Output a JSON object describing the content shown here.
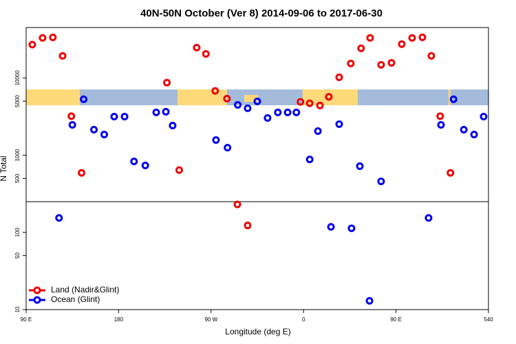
{
  "chart_data": {
    "type": "scatter",
    "title": "40N-50N October (Ver 8)   2014-09-06 to 2017-06-30",
    "x_label": "Longitude (deg E)",
    "y_label": "N Total",
    "log_y": true,
    "legend_position": "bottom-left",
    "xlim": [
      90,
      540
    ],
    "ylim": [
      10,
      45000
    ],
    "xticks": [
      {
        "value": 90,
        "label": "90 E"
      },
      180,
      {
        "value": 270,
        "label": "90 W"
      },
      {
        "value": 360,
        "label": "0"
      },
      {
        "value": 450,
        "label": "90 E"
      },
      540
    ],
    "yticks": [
      10,
      50,
      100,
      500,
      1000,
      5000,
      10000
    ],
    "hline": 250,
    "series": [
      {
        "name": "Land (Nadir&Glint)",
        "color": "#ee0000",
        "x": [
          96,
          106,
          116,
          125.5,
          134,
          144,
          227,
          239,
          256,
          265,
          274,
          285.5,
          295.6,
          305.6,
          357,
          366,
          376,
          384.6,
          394.7,
          406,
          416,
          424.8,
          435.5,
          445.6,
          455.6,
          465.7,
          475.7,
          484.4,
          493,
          503
        ],
        "values": [
          27000,
          33000,
          33500,
          19300,
          3200,
          590,
          8700,
          640,
          24700,
          20500,
          6800,
          5400,
          230,
          123,
          4900,
          4700,
          4400,
          5700,
          10200,
          15400,
          24200,
          33000,
          14800,
          15700,
          27400,
          33000,
          33600,
          19300,
          3200,
          590
        ]
      },
      {
        "name": "Ocean (Glint)",
        "color": "#0000ee",
        "x": [
          122,
          135,
          146,
          156,
          166,
          175.7,
          185.8,
          195,
          206,
          216.6,
          226,
          232.6,
          274.8,
          286,
          296,
          305.6,
          315,
          325,
          335,
          344.5,
          353,
          366,
          374,
          386.7,
          394.7,
          406.7,
          414.8,
          424.2,
          435.5,
          481.7,
          493.8,
          506,
          516,
          526,
          535.3
        ],
        "values": [
          154,
          2470,
          5300,
          2140,
          1850,
          3160,
          3160,
          830,
          735,
          3580,
          3650,
          2420,
          1570,
          1250,
          4480,
          4050,
          4970,
          3030,
          3580,
          3580,
          3580,
          880,
          2050,
          118,
          2520,
          113,
          720,
          13,
          458,
          154,
          2470,
          5300,
          2140,
          1850,
          3160
        ]
      }
    ]
  }
}
